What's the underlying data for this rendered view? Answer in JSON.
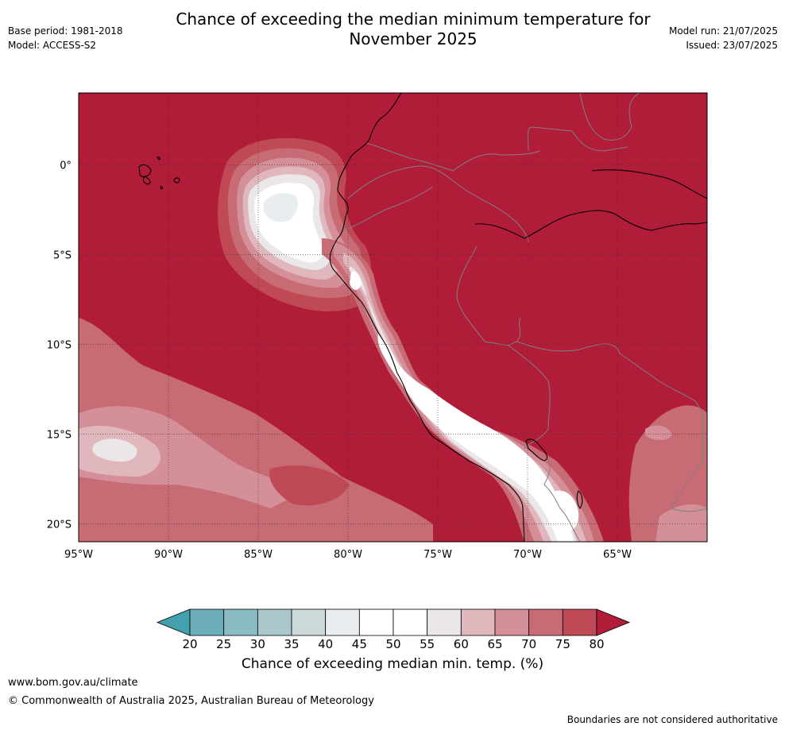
{
  "header": {
    "title_line1": "Chance of exceeding the median minimum temperature for",
    "title_line2": "November 2025",
    "base_period": "Base period: 1981-2018",
    "model": "Model: ACCESS-S2",
    "model_run": "Model run: 21/07/2025",
    "issued": "Issued: 23/07/2025"
  },
  "map": {
    "lon_labels": [
      "95°W",
      "90°W",
      "85°W",
      "80°W",
      "75°W",
      "70°W",
      "65°W"
    ],
    "lat_labels": [
      "0°",
      "5°S",
      "10°S",
      "15°S",
      "20°S"
    ],
    "lon_range": [
      -95,
      -60
    ],
    "lat_range": [
      -21,
      4
    ],
    "background_color": "#b11c38",
    "coast_color": "#000000",
    "border_color": "#808080"
  },
  "colorbar": {
    "ticks": [
      "20",
      "25",
      "30",
      "35",
      "40",
      "45",
      "50",
      "55",
      "60",
      "65",
      "70",
      "75",
      "80"
    ],
    "colors": [
      "#44a0ad",
      "#6caeb9",
      "#8bbbc4",
      "#aac8cc",
      "#cdd8da",
      "#e8eef0",
      "#ffffff",
      "#ffffff",
      "#ebe6e8",
      "#dfb7bd",
      "#d48f98",
      "#c76b75",
      "#bf4955",
      "#b11c38"
    ],
    "label": "Chance of exceeding median min. temp. (%)"
  },
  "footer": {
    "url": "www.bom.gov.au/climate",
    "copyright": "© Commonwealth of Australia 2025, Australian Bureau of Meteorology",
    "disclaimer": "Boundaries are not considered authoritative"
  }
}
